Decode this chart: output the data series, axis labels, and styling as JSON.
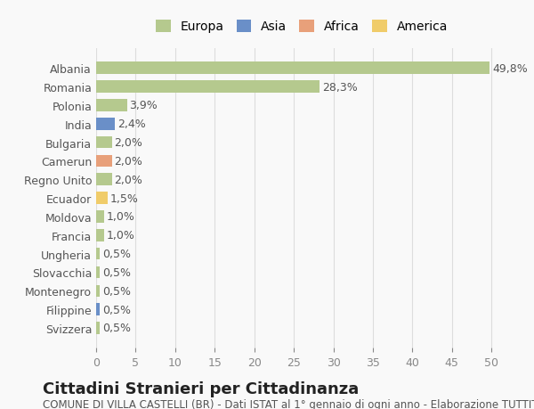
{
  "countries": [
    "Albania",
    "Romania",
    "Polonia",
    "India",
    "Bulgaria",
    "Camerun",
    "Regno Unito",
    "Ecuador",
    "Moldova",
    "Francia",
    "Ungheria",
    "Slovacchia",
    "Montenegro",
    "Filippine",
    "Svizzera"
  ],
  "values": [
    49.8,
    28.3,
    3.9,
    2.4,
    2.0,
    2.0,
    2.0,
    1.5,
    1.0,
    1.0,
    0.5,
    0.5,
    0.5,
    0.5,
    0.5
  ],
  "labels": [
    "49,8%",
    "28,3%",
    "3,9%",
    "2,4%",
    "2,0%",
    "2,0%",
    "2,0%",
    "1,5%",
    "1,0%",
    "1,0%",
    "0,5%",
    "0,5%",
    "0,5%",
    "0,5%",
    "0,5%"
  ],
  "continents": [
    "Europa",
    "Europa",
    "Europa",
    "Asia",
    "Europa",
    "Africa",
    "Europa",
    "America",
    "Europa",
    "Europa",
    "Europa",
    "Europa",
    "Europa",
    "Asia",
    "Europa"
  ],
  "continent_colors": {
    "Europa": "#b5c98e",
    "Asia": "#6a8fc8",
    "Africa": "#e8a07a",
    "America": "#f0cc6a"
  },
  "legend_order": [
    "Europa",
    "Asia",
    "Africa",
    "America"
  ],
  "xlim": [
    0,
    52
  ],
  "xticks": [
    0,
    5,
    10,
    15,
    20,
    25,
    30,
    35,
    40,
    45,
    50
  ],
  "title": "Cittadini Stranieri per Cittadinanza",
  "subtitle": "COMUNE DI VILLA CASTELLI (BR) - Dati ISTAT al 1° gennaio di ogni anno - Elaborazione TUTTITALIA.IT",
  "bg_color": "#f9f9f9",
  "grid_color": "#dddddd",
  "bar_height": 0.65,
  "title_fontsize": 13,
  "subtitle_fontsize": 8.5,
  "label_fontsize": 9,
  "tick_fontsize": 9
}
